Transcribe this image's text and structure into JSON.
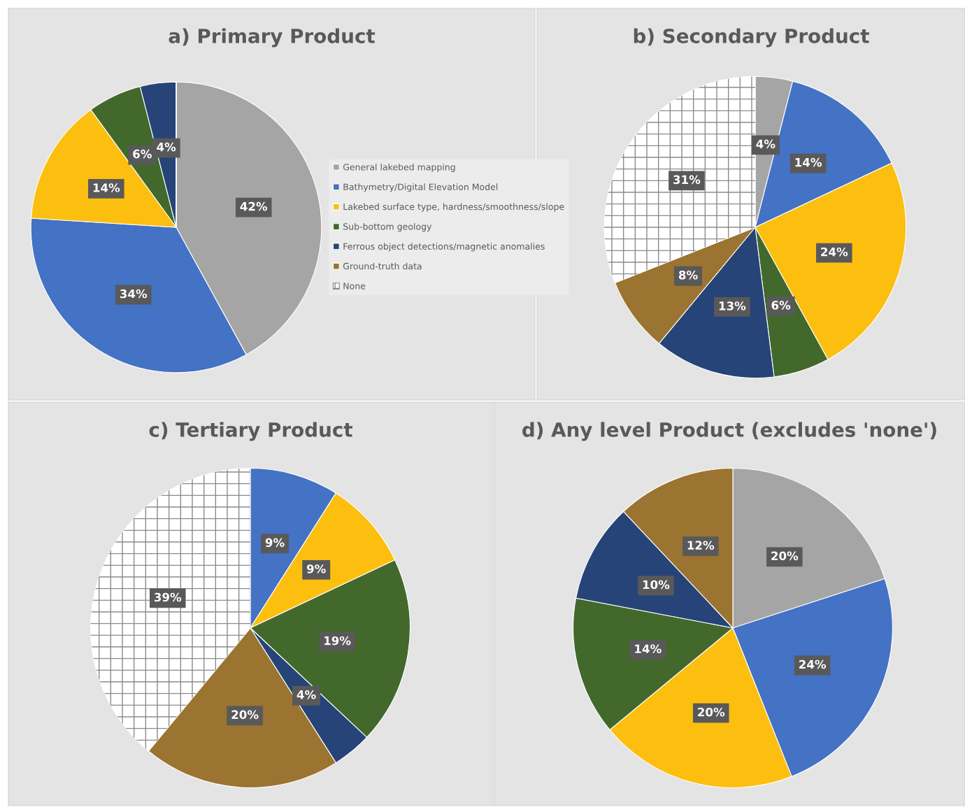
{
  "chart_data": [
    {
      "type": "pie",
      "title": "a) Primary Product",
      "categories": [
        "General lakebed mapping",
        "Bathymetry/Digital Elevation Model",
        "Lakebed surface type, hardness/smoothness/slope",
        "Sub-bottom geology",
        "Ferrous object detections/magnetic anomalies",
        "Ground-truth data",
        "None"
      ],
      "values": [
        42,
        34,
        14,
        6,
        4,
        0,
        0
      ],
      "colors": [
        "#a5a5a5",
        "#4472c4",
        "#fcbf10",
        "#43682b",
        "#264478",
        "#9a7430",
        "#ffffff"
      ],
      "value_labels": [
        "42%",
        "34%",
        "14%",
        "6%",
        "4%",
        null,
        null
      ],
      "legend": "right"
    },
    {
      "type": "pie",
      "title": "b) Secondary Product",
      "categories": [
        null,
        null,
        null,
        null,
        null,
        null,
        null
      ],
      "values": [
        4,
        14,
        24,
        6,
        13,
        8,
        31
      ],
      "colors": [
        "#a5a5a5",
        "#4472c4",
        "#fcbf10",
        "#43682b",
        "#264478",
        "#9a7430",
        "#ffffff"
      ],
      "value_labels": [
        "4%",
        "14%",
        "24%",
        "6%",
        "13%",
        "8%",
        "31%"
      ]
    },
    {
      "type": "pie",
      "title": "c) Tertiary Product",
      "categories": [
        null,
        null,
        null,
        null,
        null,
        null,
        null
      ],
      "values": [
        0,
        9,
        9,
        19,
        4,
        20,
        39
      ],
      "colors": [
        "#a5a5a5",
        "#4472c4",
        "#fcbf10",
        "#43682b",
        "#264478",
        "#9a7430",
        "#ffffff"
      ],
      "value_labels": [
        null,
        "9%",
        "9%",
        "19%",
        "4%",
        "20%",
        "39%"
      ]
    },
    {
      "type": "pie",
      "title": "d) Any level Product (excludes 'none')",
      "categories": [
        null,
        null,
        null,
        null,
        null,
        null
      ],
      "values": [
        20,
        24,
        20,
        14,
        10,
        12
      ],
      "colors": [
        "#a5a5a5",
        "#4472c4",
        "#fcbf10",
        "#43682b",
        "#264478",
        "#9a7430"
      ],
      "value_labels": [
        "20%",
        "24%",
        "20%",
        "14%",
        "10%",
        "12%"
      ]
    }
  ]
}
